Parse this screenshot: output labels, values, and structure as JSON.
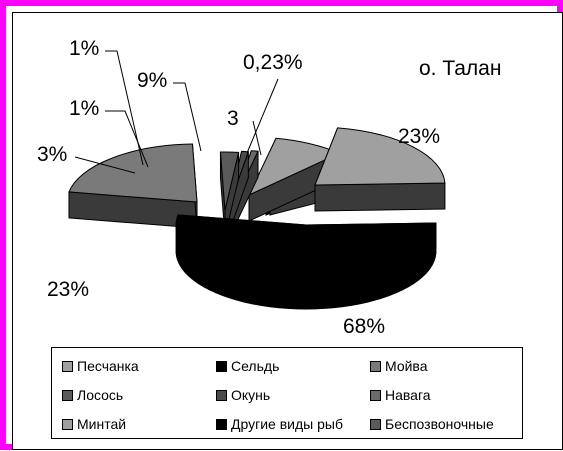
{
  "chart_data": {
    "type": "pie",
    "title": "о. Талан",
    "slices": [
      {
        "label": "Песчанка",
        "value": 23,
        "text": "23%",
        "color": "#a0a0a0"
      },
      {
        "label": "Сельдь",
        "value": 68,
        "text": "68%",
        "color": "#000000"
      },
      {
        "label": "Мойва",
        "value": 23,
        "text": "23%",
        "color": "#7a7a7a"
      },
      {
        "label": "Лосось",
        "value": 3,
        "text": "3%",
        "color": "#5a5a5a"
      },
      {
        "label": "Окунь",
        "value": 1,
        "text": "1%",
        "color": "#4a4a4a"
      },
      {
        "label": "Навага",
        "value": 1,
        "text": "1%",
        "color": "#6a6a6a"
      },
      {
        "label": "Минтай",
        "value": 9,
        "text": "9%",
        "color": "#a0a0a0"
      },
      {
        "label": "Другие виды рыб",
        "value": 0.23,
        "text": "0,23%",
        "color": "#000000"
      },
      {
        "label": "Беспозвоночные",
        "value": 3,
        "text": "3",
        "color": "#5a5a5a"
      }
    ],
    "legend": [
      {
        "label": "Песчанка",
        "color": "#a0a0a0"
      },
      {
        "label": "Сельдь",
        "color": "#000000"
      },
      {
        "label": "Мойва",
        "color": "#7a7a7a"
      },
      {
        "label": "Лосось",
        "color": "#5a5a5a"
      },
      {
        "label": "Окунь",
        "color": "#4a4a4a"
      },
      {
        "label": "Навага",
        "color": "#6a6a6a"
      },
      {
        "label": "Минтай",
        "color": "#a0a0a0"
      },
      {
        "label": "Другие виды рыб",
        "color": "#000000"
      },
      {
        "label": "Беспозвоночные",
        "color": "#5a5a5a"
      }
    ],
    "legend_position": "bottom",
    "frame_color": "#ff00ff"
  }
}
